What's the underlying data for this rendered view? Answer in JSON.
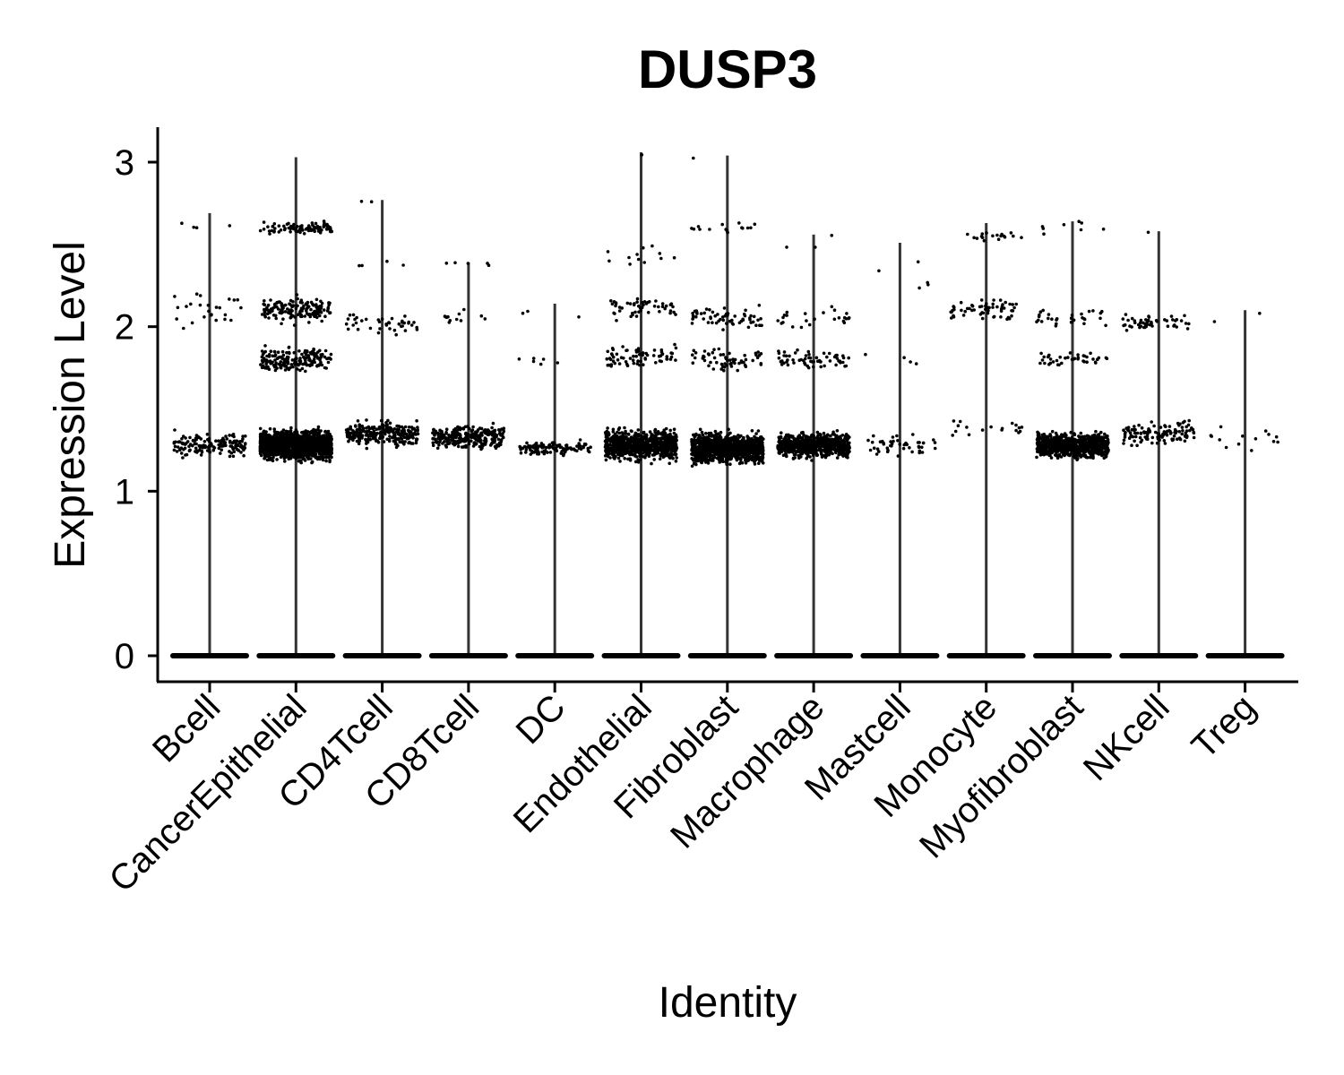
{
  "chart_data": {
    "type": "scatter",
    "subtype": "violin-jitter",
    "title": "DUSP3",
    "xlabel": "Identity",
    "ylabel": "Expression Level",
    "ylim": [
      -0.15,
      3.2
    ],
    "yticks": [
      0,
      1,
      2,
      3
    ],
    "ytick_labels": [
      "0",
      "1",
      "2",
      "3"
    ],
    "categories": [
      "Bcell",
      "CancerEpithelial",
      "CD4Tcell",
      "CD8Tcell",
      "DC",
      "Endothelial",
      "Fibroblast",
      "Macrophage",
      "Mastcell",
      "Monocyte",
      "Myofibroblast",
      "NKcell",
      "Treg"
    ],
    "max_expression": [
      2.69,
      3.03,
      2.77,
      2.39,
      2.14,
      3.06,
      3.04,
      2.56,
      2.51,
      2.63,
      2.64,
      2.58,
      2.1
    ],
    "point_color": "#000000",
    "violin_color": "#333333",
    "grid": false,
    "legend": "none",
    "groups": [
      {
        "name": "Bcell",
        "zero_band": true,
        "clusters": [
          {
            "center": 1.28,
            "spread": 0.1,
            "count": 160
          },
          {
            "center": 2.1,
            "spread": 0.15,
            "count": 25
          },
          {
            "center": 2.62,
            "spread": 0.05,
            "count": 4
          }
        ]
      },
      {
        "name": "CancerEpithelial",
        "zero_band": true,
        "clusters": [
          {
            "center": 1.28,
            "spread": 0.12,
            "count": 1400
          },
          {
            "center": 1.8,
            "spread": 0.1,
            "count": 180
          },
          {
            "center": 2.1,
            "spread": 0.1,
            "count": 160
          },
          {
            "center": 2.6,
            "spread": 0.05,
            "count": 90
          }
        ]
      },
      {
        "name": "CD4Tcell",
        "zero_band": true,
        "clusters": [
          {
            "center": 1.35,
            "spread": 0.1,
            "count": 260
          },
          {
            "center": 2.02,
            "spread": 0.08,
            "count": 40
          },
          {
            "center": 2.37,
            "spread": 0.04,
            "count": 4
          },
          {
            "center": 2.76,
            "spread": 0.02,
            "count": 2
          }
        ]
      },
      {
        "name": "CD8Tcell",
        "zero_band": true,
        "clusters": [
          {
            "center": 1.33,
            "spread": 0.1,
            "count": 280
          },
          {
            "center": 2.05,
            "spread": 0.08,
            "count": 12
          },
          {
            "center": 2.38,
            "spread": 0.03,
            "count": 5
          }
        ]
      },
      {
        "name": "DC",
        "zero_band": true,
        "clusters": [
          {
            "center": 1.26,
            "spread": 0.06,
            "count": 110
          },
          {
            "center": 1.78,
            "spread": 0.06,
            "count": 6
          },
          {
            "center": 2.08,
            "spread": 0.05,
            "count": 3
          }
        ]
      },
      {
        "name": "Endothelial",
        "zero_band": true,
        "clusters": [
          {
            "center": 1.28,
            "spread": 0.12,
            "count": 800
          },
          {
            "center": 1.82,
            "spread": 0.1,
            "count": 70
          },
          {
            "center": 2.12,
            "spread": 0.1,
            "count": 50
          },
          {
            "center": 2.45,
            "spread": 0.15,
            "count": 12
          },
          {
            "center": 3.05,
            "spread": 0.01,
            "count": 1
          }
        ]
      },
      {
        "name": "Fibroblast",
        "zero_band": true,
        "clusters": [
          {
            "center": 1.26,
            "spread": 0.12,
            "count": 1100
          },
          {
            "center": 1.8,
            "spread": 0.1,
            "count": 60
          },
          {
            "center": 2.05,
            "spread": 0.1,
            "count": 60
          },
          {
            "center": 2.6,
            "spread": 0.04,
            "count": 15
          },
          {
            "center": 3.03,
            "spread": 0.01,
            "count": 1
          }
        ]
      },
      {
        "name": "Macrophage",
        "zero_band": true,
        "clusters": [
          {
            "center": 1.28,
            "spread": 0.1,
            "count": 700
          },
          {
            "center": 1.8,
            "spread": 0.08,
            "count": 60
          },
          {
            "center": 2.05,
            "spread": 0.08,
            "count": 25
          },
          {
            "center": 2.5,
            "spread": 0.1,
            "count": 3
          }
        ]
      },
      {
        "name": "Mastcell",
        "zero_band": true,
        "clusters": [
          {
            "center": 1.28,
            "spread": 0.1,
            "count": 45
          },
          {
            "center": 1.8,
            "spread": 0.05,
            "count": 4
          },
          {
            "center": 2.3,
            "spread": 0.15,
            "count": 5
          }
        ]
      },
      {
        "name": "Monocyte",
        "zero_band": true,
        "clusters": [
          {
            "center": 1.38,
            "spread": 0.08,
            "count": 18
          },
          {
            "center": 2.1,
            "spread": 0.1,
            "count": 60
          },
          {
            "center": 2.55,
            "spread": 0.05,
            "count": 18
          }
        ]
      },
      {
        "name": "Myofibroblast",
        "zero_band": true,
        "clusters": [
          {
            "center": 1.28,
            "spread": 0.1,
            "count": 800
          },
          {
            "center": 1.8,
            "spread": 0.08,
            "count": 40
          },
          {
            "center": 2.05,
            "spread": 0.1,
            "count": 30
          },
          {
            "center": 2.6,
            "spread": 0.05,
            "count": 8
          }
        ]
      },
      {
        "name": "NKcell",
        "zero_band": true,
        "clusters": [
          {
            "center": 1.35,
            "spread": 0.1,
            "count": 120
          },
          {
            "center": 2.03,
            "spread": 0.06,
            "count": 50
          },
          {
            "center": 2.57,
            "spread": 0.01,
            "count": 1
          }
        ]
      },
      {
        "name": "Treg",
        "zero_band": true,
        "clusters": [
          {
            "center": 1.32,
            "spread": 0.1,
            "count": 14
          },
          {
            "center": 2.05,
            "spread": 0.05,
            "count": 2
          }
        ]
      }
    ]
  }
}
